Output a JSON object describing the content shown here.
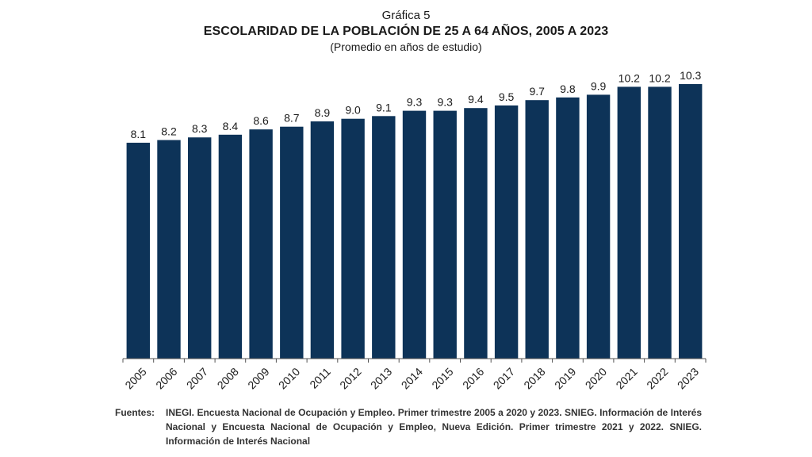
{
  "header": {
    "figure_label": "Gráfica 5",
    "title": "ESCOLARIDAD DE LA POBLACIÓN DE 25 A 64 AÑOS, 2005 A 2023",
    "subtitle": "(Promedio en años de estudio)"
  },
  "chart_data": {
    "type": "bar",
    "title": "ESCOLARIDAD DE LA POBLACIÓN DE 25 A 64 AÑOS, 2005 A 2023",
    "subtitle": "(Promedio en años de estudio)",
    "categories": [
      "2005",
      "2006",
      "2007",
      "2008",
      "2009",
      "2010",
      "2011",
      "2012",
      "2013",
      "2014",
      "2015",
      "2016",
      "2017",
      "2018",
      "2019",
      "2020",
      "2021",
      "2022",
      "2023"
    ],
    "values": [
      8.1,
      8.2,
      8.3,
      8.4,
      8.6,
      8.7,
      8.9,
      9.0,
      9.1,
      9.3,
      9.3,
      9.4,
      9.5,
      9.7,
      9.8,
      9.9,
      10.2,
      10.2,
      10.3
    ],
    "value_labels": [
      "8.1",
      "8.2",
      "8.3",
      "8.4",
      "8.6",
      "8.7",
      "8.9",
      "9.0",
      "9.1",
      "9.3",
      "9.3",
      "9.4",
      "9.5",
      "9.7",
      "9.8",
      "9.9",
      "10.2",
      "10.2",
      "10.3"
    ],
    "xlabel": "",
    "ylabel": "",
    "ylim": [
      0,
      10.3
    ],
    "grid": false,
    "legend": "none",
    "bar_color": "#0d3358"
  },
  "source": {
    "label": "Fuentes:",
    "text": "INEGI. Encuesta Nacional de Ocupación y Empleo. Primer trimestre 2005 a 2020 y 2023. SNIEG. Información de Interés Nacional y Encuesta Nacional de Ocupación y Empleo, Nueva Edición. Primer trimestre 2021 y 2022. SNIEG. Información de Interés Nacional"
  }
}
